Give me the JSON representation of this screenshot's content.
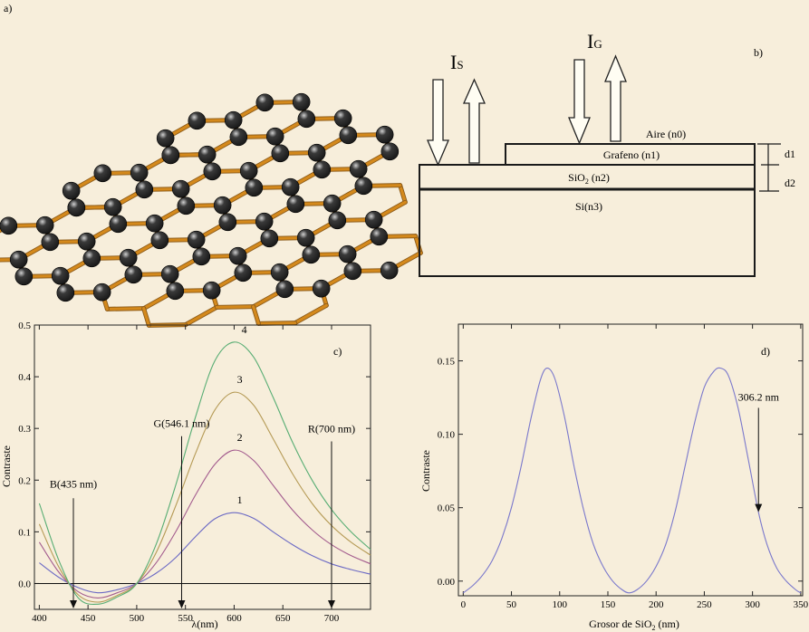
{
  "panels": {
    "a": {
      "label": "a)"
    },
    "b": {
      "label": "b)",
      "arrow_labels": {
        "is_main": "I",
        "is_sub": "S",
        "ig_main": "I",
        "ig_sub": "G"
      },
      "layers": {
        "air": "Aire (n0)",
        "graphene": "Grafeno (n1)",
        "sio2_pre": "SiO",
        "sio2_sub": "2",
        "sio2_post": " (n2)",
        "si": "Si(n3)"
      },
      "dims": {
        "d1": "d1",
        "d2": "d2"
      }
    },
    "c": {
      "label": "c)",
      "curve_labels": [
        "1",
        "2",
        "3",
        "4"
      ],
      "annotations": {
        "blue": "B(435 nm)",
        "green": "G(546.1 nm)",
        "red": "R(700 nm)"
      },
      "xlabel": "λ(nm)",
      "ylabel": "Contraste"
    },
    "d": {
      "label": "d)",
      "annotation": "306.2 nm",
      "xlabel_pre": "Grosor de SiO",
      "xlabel_sub": "2",
      "xlabel_post": " (nm)",
      "ylabel": "Contraste"
    }
  },
  "colors": {
    "background": "#f7eedb",
    "bond": "#d4891c",
    "atom": "#1a1a1a",
    "curve1": "#6b69c4",
    "curve2": "#a35c8e",
    "curve3": "#b59a55",
    "curve4": "#57ad73",
    "curve_d": "#7a78cc"
  },
  "chart_data": [
    {
      "type": "line",
      "panel": "c",
      "xlabel": "λ(nm)",
      "ylabel": "Contraste",
      "xlim": [
        395,
        740
      ],
      "ylim": [
        -0.05,
        0.5
      ],
      "xticks": [
        400,
        450,
        500,
        550,
        600,
        650,
        700
      ],
      "yticks": [
        0.0,
        0.1,
        0.2,
        0.3,
        0.4,
        0.5
      ],
      "ytick_labels": [
        "0.0",
        "0.1",
        "0.2",
        "0.3",
        "0.4",
        "0.5"
      ],
      "series": [
        {
          "name": "1",
          "x": [
            400,
            420,
            440,
            460,
            480,
            500,
            520,
            540,
            560,
            580,
            600,
            620,
            640,
            660,
            680,
            700,
            720,
            740
          ],
          "y": [
            0.04,
            0.012,
            -0.008,
            -0.018,
            -0.012,
            0.0,
            0.02,
            0.05,
            0.09,
            0.125,
            0.137,
            0.126,
            0.1,
            0.075,
            0.054,
            0.038,
            0.027,
            0.018
          ]
        },
        {
          "name": "2",
          "x": [
            400,
            420,
            440,
            460,
            480,
            500,
            520,
            540,
            560,
            580,
            600,
            620,
            640,
            660,
            680,
            700,
            720,
            740
          ],
          "y": [
            0.08,
            0.022,
            -0.016,
            -0.028,
            -0.018,
            0.0,
            0.04,
            0.1,
            0.17,
            0.23,
            0.258,
            0.238,
            0.19,
            0.142,
            0.104,
            0.075,
            0.054,
            0.038
          ]
        },
        {
          "name": "3",
          "x": [
            400,
            420,
            440,
            460,
            480,
            500,
            520,
            540,
            560,
            580,
            600,
            620,
            640,
            660,
            680,
            700,
            720,
            740
          ],
          "y": [
            0.115,
            0.032,
            -0.022,
            -0.036,
            -0.023,
            0.0,
            0.06,
            0.15,
            0.25,
            0.335,
            0.37,
            0.345,
            0.28,
            0.212,
            0.155,
            0.112,
            0.08,
            0.055
          ]
        },
        {
          "name": "4",
          "x": [
            400,
            420,
            440,
            460,
            480,
            500,
            520,
            540,
            560,
            580,
            600,
            620,
            640,
            660,
            680,
            700,
            720,
            740
          ],
          "y": [
            0.155,
            0.045,
            -0.028,
            -0.04,
            -0.026,
            0.0,
            0.076,
            0.19,
            0.32,
            0.43,
            0.467,
            0.438,
            0.36,
            0.273,
            0.2,
            0.143,
            0.1,
            0.066
          ]
        }
      ],
      "annotations": [
        {
          "text": "B(435 nm)",
          "x": 435
        },
        {
          "text": "G(546.1 nm)",
          "x": 546.1
        },
        {
          "text": "R(700 nm)",
          "x": 700
        }
      ]
    },
    {
      "type": "line",
      "panel": "d",
      "xlabel": "Grosor de SiO2 (nm)",
      "ylabel": "Contraste",
      "xlim": [
        -5,
        352
      ],
      "ylim": [
        -0.01,
        0.175
      ],
      "xticks": [
        0,
        50,
        100,
        150,
        200,
        250,
        300,
        350
      ],
      "yticks": [
        0.0,
        0.05,
        0.1,
        0.15
      ],
      "ytick_labels": [
        "0.00",
        "0.05",
        "0.10",
        "0.15"
      ],
      "series": [
        {
          "name": "",
          "x": [
            0,
            10,
            20,
            30,
            40,
            50,
            60,
            70,
            80,
            87,
            95,
            105,
            115,
            125,
            135,
            145,
            155,
            165,
            172,
            180,
            190,
            200,
            210,
            220,
            230,
            240,
            250,
            260,
            267,
            275,
            285,
            295,
            306.2,
            315,
            325,
            335,
            345,
            350
          ],
          "y": [
            -0.008,
            -0.003,
            0.004,
            0.014,
            0.029,
            0.05,
            0.078,
            0.11,
            0.137,
            0.145,
            0.138,
            0.112,
            0.078,
            0.048,
            0.025,
            0.01,
            0.0,
            -0.006,
            -0.008,
            -0.006,
            0.0,
            0.01,
            0.025,
            0.048,
            0.078,
            0.108,
            0.132,
            0.143,
            0.145,
            0.14,
            0.118,
            0.085,
            0.047,
            0.025,
            0.009,
            0.0,
            -0.006,
            -0.008
          ]
        }
      ],
      "annotations": [
        {
          "text": "306.2 nm",
          "x": 306.2
        }
      ]
    }
  ]
}
